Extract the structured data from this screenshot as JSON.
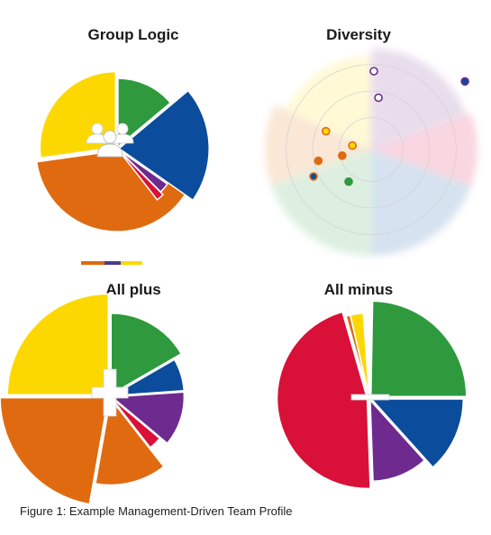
{
  "caption": "Figure 1: Example Management-Driven Team Profile",
  "colors": {
    "orange": "#E06A10",
    "yellow": "#FDD800",
    "green": "#2E9A3D",
    "blue": "#0B4C9C",
    "purple": "#6E2A8E",
    "red": "#D91038",
    "white": "#FFFFFF"
  },
  "chart_data": [
    {
      "type": "pie",
      "title": "Group Logic",
      "note": "polar-area style wedges with varying radii; group-of-people icon at center; small orange-blue-yellow color bar below",
      "center_icon": "group-people-icon",
      "slices": [
        {
          "color": "orange",
          "start_deg": 20,
          "end_deg": 172,
          "radius": 90
        },
        {
          "color": "yellow",
          "start_deg": 172,
          "end_deg": 270,
          "radius": 84
        },
        {
          "color": "green",
          "start_deg": 270,
          "end_deg": 320,
          "radius": 76
        },
        {
          "color": "blue",
          "start_deg": 320,
          "end_deg": 395,
          "radius": 100
        },
        {
          "color": "purple",
          "start_deg": 395,
          "end_deg": 405,
          "radius": 66
        },
        {
          "color": "red",
          "start_deg": 405,
          "end_deg": 412,
          "radius": 70
        }
      ],
      "legend_bar": [
        "orange",
        "blue",
        "yellow"
      ]
    },
    {
      "type": "scatter",
      "title": "Diversity",
      "note": "polar diagram with faint colored sectors and concentric rings; colored points",
      "sectors": [
        {
          "color": "orange",
          "start_deg": 160,
          "end_deg": 205
        },
        {
          "color": "yellow",
          "start_deg": 205,
          "end_deg": 270
        },
        {
          "color": "purple",
          "start_deg": 270,
          "end_deg": 300
        },
        {
          "color": "purple",
          "start_deg": 300,
          "end_deg": 340
        },
        {
          "color": "red",
          "start_deg": 340,
          "end_deg": 380
        },
        {
          "color": "blue",
          "start_deg": 380,
          "end_deg": 450
        },
        {
          "color": "green",
          "start_deg": 450,
          "end_deg": 520
        }
      ],
      "points": [
        {
          "angle_deg": 155,
          "r": 0.73,
          "fill": "blue",
          "edge": "orange"
        },
        {
          "angle_deg": 168,
          "r": 0.62,
          "fill": "orange",
          "edge": "orange"
        },
        {
          "angle_deg": 202,
          "r": 0.56,
          "fill": "yellow",
          "edge": "orange"
        },
        {
          "angle_deg": 168,
          "r": 0.34,
          "fill": "orange",
          "edge": "orange"
        },
        {
          "angle_deg": 192,
          "r": 0.22,
          "fill": "yellow",
          "edge": "orange"
        },
        {
          "angle_deg": 125,
          "r": 0.45,
          "fill": "green",
          "edge": "green"
        },
        {
          "angle_deg": 272,
          "r": 0.9,
          "fill": "white",
          "edge": "purple"
        },
        {
          "angle_deg": 278,
          "r": 0.6,
          "fill": "white",
          "edge": "purple"
        },
        {
          "angle_deg": 324,
          "r": 1.33,
          "fill": "blue",
          "edge": "purple"
        }
      ]
    },
    {
      "type": "pie",
      "title": "All plus",
      "note": "polar-area style wedges; white plus sign at center",
      "center_icon": "plus-icon",
      "slices": [
        {
          "color": "orange",
          "start_deg": 100,
          "end_deg": 180,
          "radius": 120
        },
        {
          "color": "yellow",
          "start_deg": 180,
          "end_deg": 270,
          "radius": 112
        },
        {
          "color": "green",
          "start_deg": 270,
          "end_deg": 330,
          "radius": 90
        },
        {
          "color": "blue",
          "start_deg": 330,
          "end_deg": 356,
          "radius": 80
        },
        {
          "color": "purple",
          "start_deg": 356,
          "end_deg": 400,
          "radius": 80
        },
        {
          "color": "red",
          "start_deg": 400,
          "end_deg": 412,
          "radius": 70
        },
        {
          "color": "orange",
          "start_deg": 412,
          "end_deg": 460,
          "radius": 96
        }
      ]
    },
    {
      "type": "pie",
      "title": "All minus",
      "note": "polar-area style wedges; white minus sign at center",
      "center_icon": "minus-icon",
      "slices": [
        {
          "color": "red",
          "start_deg": 88,
          "end_deg": 254,
          "radius": 100
        },
        {
          "color": "orange",
          "start_deg": 254,
          "end_deg": 257,
          "radius": 92
        },
        {
          "color": "yellow",
          "start_deg": 257,
          "end_deg": 266,
          "radius": 92
        },
        {
          "color": "green",
          "start_deg": 271,
          "end_deg": 360,
          "radius": 106
        },
        {
          "color": "blue",
          "start_deg": 0,
          "end_deg": 48,
          "radius": 102
        },
        {
          "color": "purple",
          "start_deg": 48,
          "end_deg": 88,
          "radius": 90
        }
      ]
    }
  ]
}
